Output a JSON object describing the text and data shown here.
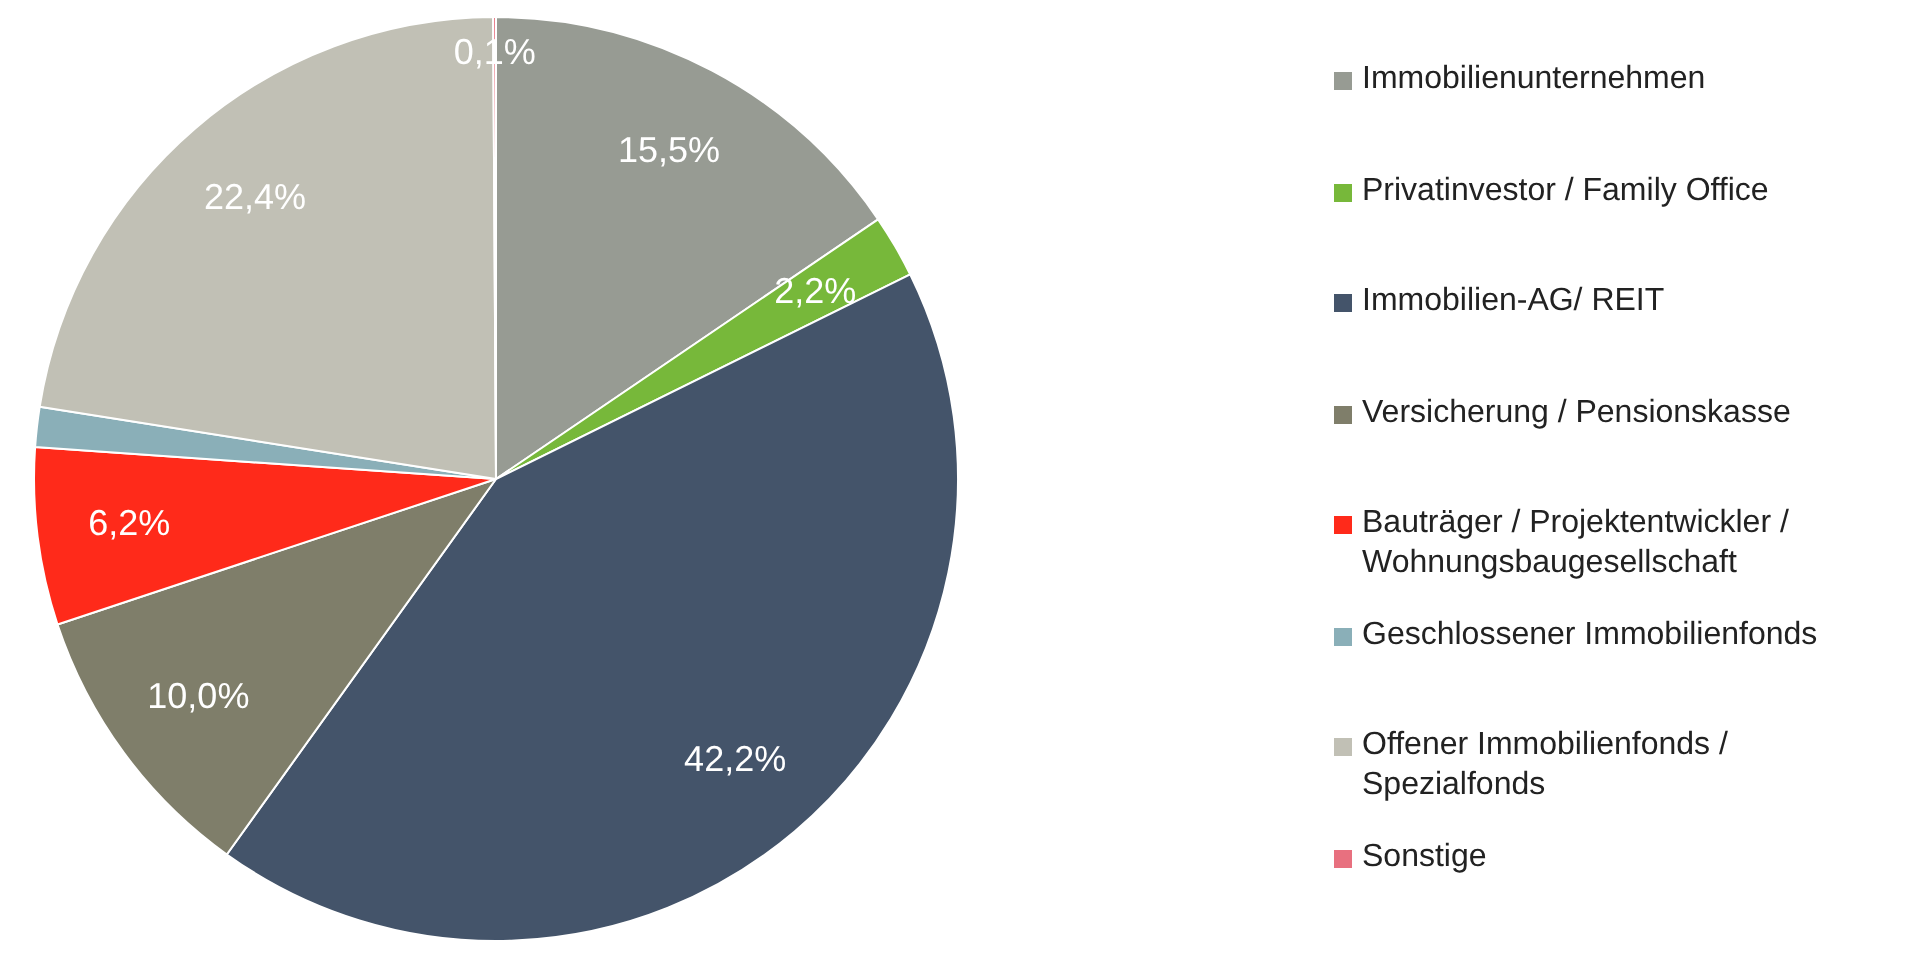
{
  "chart_data": {
    "type": "pie",
    "categories": [
      "Immobilienunternehmen",
      "Privatinvestor / Family Office",
      "Immobilien-AG/ REIT",
      "Versicherung / Pensionskasse",
      "Bauträger / Projektentwickler / Wohnungsbaugesellschaft",
      "Geschlossener Immobilienfonds",
      "Offener Immobilienfonds / Spezialfonds",
      "Sonstige"
    ],
    "values": [
      15.5,
      2.2,
      42.2,
      10.0,
      6.2,
      1.4,
      22.4,
      0.1
    ],
    "colors": [
      "#979b93",
      "#77b83a",
      "#44546a",
      "#7f7e6a",
      "#ff2a1a",
      "#8aafb8",
      "#c1c0b5",
      "#e8707f"
    ],
    "value_labels": [
      "15,5%",
      "2,2%",
      "42,2%",
      "10,0%",
      "6,2%",
      null,
      "22,4%",
      "0,1%"
    ],
    "legend": "right"
  }
}
